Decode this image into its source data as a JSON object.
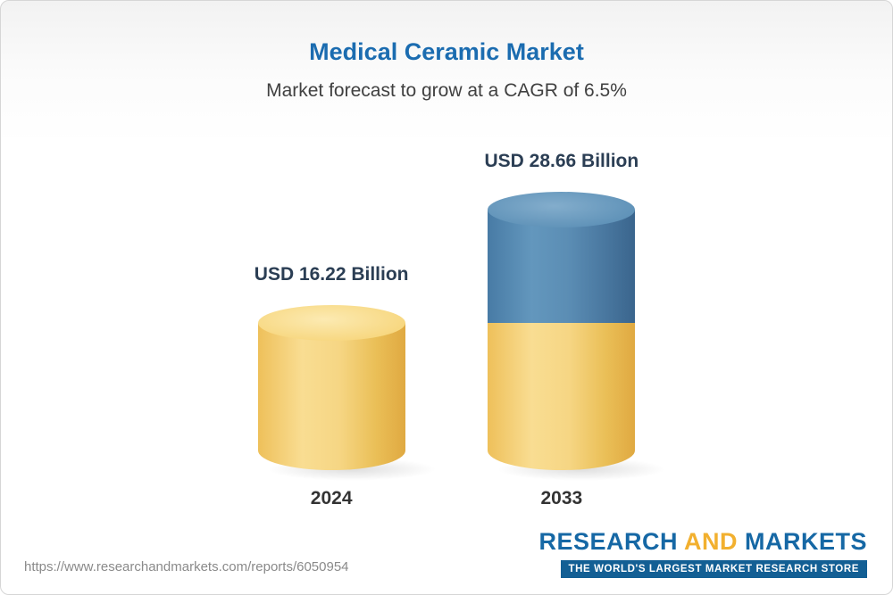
{
  "header": {
    "title": "Medical Ceramic Market",
    "subtitle": "Market forecast to grow at a CAGR of 6.5%"
  },
  "chart_data": {
    "type": "bar",
    "categories": [
      "2024",
      "2033"
    ],
    "values": [
      16.22,
      28.66
    ],
    "unit": "USD Billion",
    "value_labels": [
      "USD 16.22 Billion",
      "USD 28.66 Billion"
    ],
    "title": "Medical Ceramic Market",
    "subtitle": "Market forecast to grow at a CAGR of 6.5%",
    "cagr": "6.5%",
    "legend_position": "none",
    "grid": false,
    "colors": {
      "base_segment": "#f3c963",
      "growth_segment": "#4379a5"
    },
    "pixels_per_billion": 10.2
  },
  "footer": {
    "url": "https://www.researchandmarkets.com/reports/6050954",
    "logo": {
      "word1": "RESEARCH",
      "word2": "AND",
      "word3": "MARKETS",
      "tagline": "THE WORLD'S LARGEST MARKET RESEARCH STORE"
    }
  }
}
